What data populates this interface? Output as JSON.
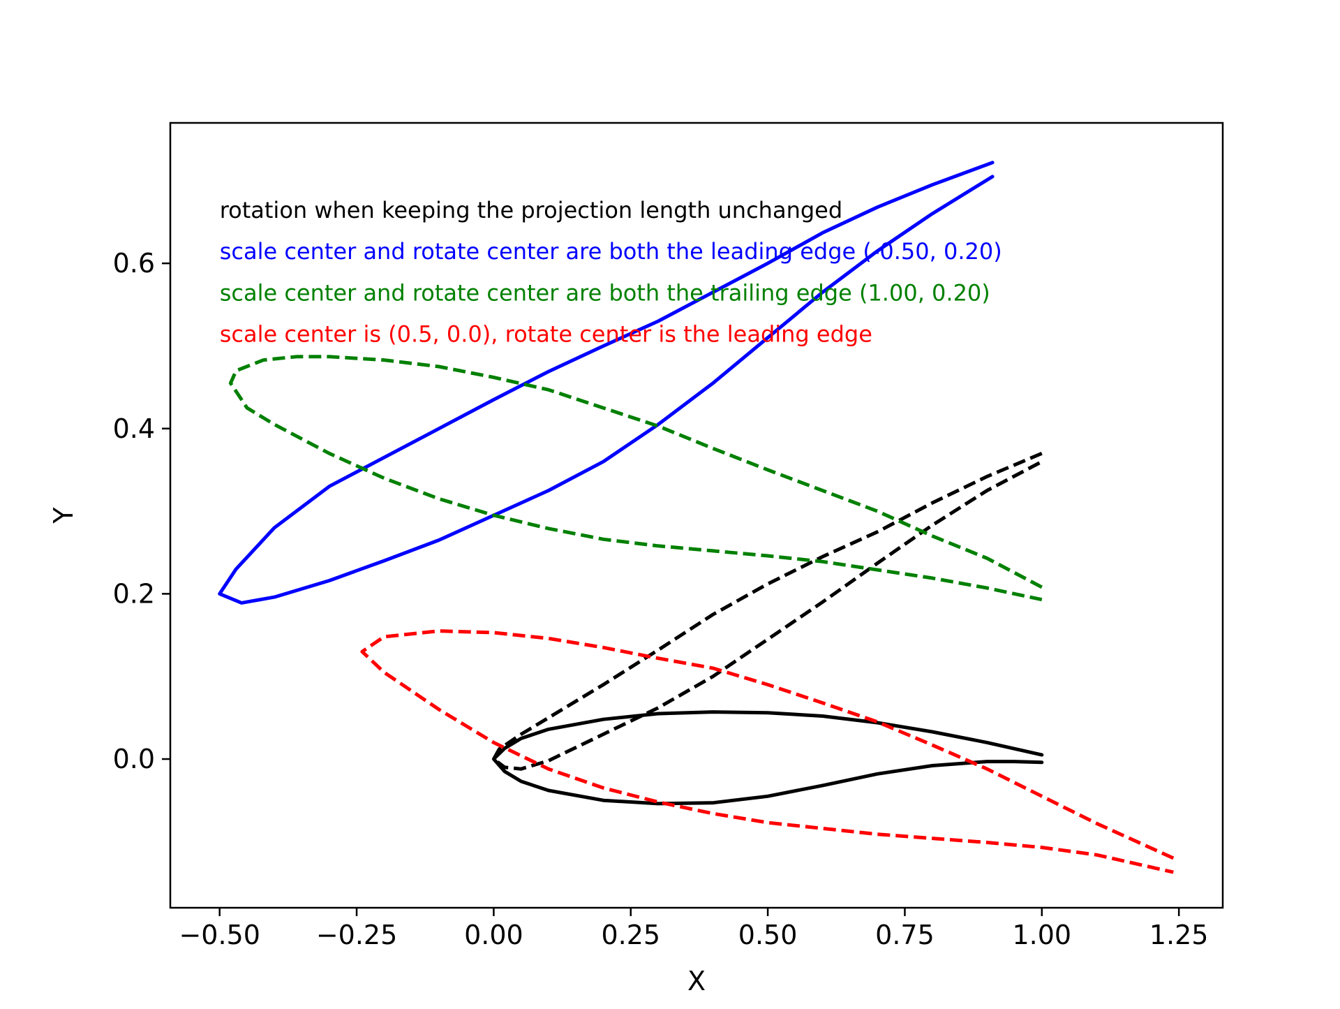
{
  "chart_data": {
    "type": "line",
    "xlabel": "X",
    "ylabel": "Y",
    "xlim": [
      -0.59,
      1.33
    ],
    "ylim": [
      -0.18,
      0.77
    ],
    "x_ticks": [
      {
        "value": -0.5,
        "label": "−0.50"
      },
      {
        "value": -0.25,
        "label": "−0.25"
      },
      {
        "value": 0.0,
        "label": "0.00"
      },
      {
        "value": 0.25,
        "label": "0.25"
      },
      {
        "value": 0.5,
        "label": "0.50"
      },
      {
        "value": 0.75,
        "label": "0.75"
      },
      {
        "value": 1.0,
        "label": "1.00"
      },
      {
        "value": 1.25,
        "label": "1.25"
      }
    ],
    "y_ticks": [
      {
        "value": 0.0,
        "label": "0.0"
      },
      {
        "value": 0.2,
        "label": "0.2"
      },
      {
        "value": 0.4,
        "label": "0.4"
      },
      {
        "value": 0.6,
        "label": "0.6"
      }
    ],
    "grid": false,
    "annotations": [
      {
        "text": "rotation when keeping the projection length unchanged",
        "x": -0.5,
        "y": 0.655,
        "color": "#000000"
      },
      {
        "text": "scale center and rotate center are both the leading edge (-0.50, 0.20)",
        "x": -0.5,
        "y": 0.605,
        "color": "#0000ff"
      },
      {
        "text": "scale center and rotate center are both the trailing edge (1.00, 0.20)",
        "x": -0.5,
        "y": 0.555,
        "color": "#008000"
      },
      {
        "text": "scale center is (0.5, 0.0), rotate center is the leading edge",
        "x": -0.5,
        "y": 0.505,
        "color": "#ff0000"
      }
    ],
    "series": [
      {
        "color": "#000000",
        "dash": "solid",
        "x": [
          1.0,
          0.9,
          0.8,
          0.7,
          0.6,
          0.5,
          0.4,
          0.3,
          0.2,
          0.1,
          0.05,
          0.02,
          0.0,
          0.02,
          0.05,
          0.1,
          0.2,
          0.3,
          0.4,
          0.5,
          0.6,
          0.7,
          0.8,
          0.9,
          0.95,
          1.0
        ],
        "y": [
          0.005,
          0.02,
          0.033,
          0.044,
          0.052,
          0.056,
          0.057,
          0.055,
          0.048,
          0.036,
          0.025,
          0.013,
          0.0,
          -0.015,
          -0.027,
          -0.038,
          -0.05,
          -0.054,
          -0.053,
          -0.045,
          -0.032,
          -0.018,
          -0.008,
          -0.003,
          -0.003,
          -0.004
        ]
      },
      {
        "color": "#000000",
        "dash": "dashed",
        "x": [
          1.0,
          0.9,
          0.8,
          0.7,
          0.6,
          0.5,
          0.4,
          0.3,
          0.2,
          0.1,
          0.05,
          0.01,
          0.0,
          0.02,
          0.05,
          0.1,
          0.2,
          0.3,
          0.4,
          0.5,
          0.6,
          0.7,
          0.8,
          0.9,
          1.0
        ],
        "y": [
          0.37,
          0.342,
          0.31,
          0.275,
          0.245,
          0.212,
          0.175,
          0.132,
          0.09,
          0.05,
          0.03,
          0.012,
          0.0,
          -0.01,
          -0.012,
          -0.002,
          0.03,
          0.062,
          0.1,
          0.145,
          0.19,
          0.237,
          0.283,
          0.325,
          0.36
        ]
      },
      {
        "color": "#0000ff",
        "dash": "solid",
        "x": [
          0.91,
          0.8,
          0.7,
          0.6,
          0.5,
          0.4,
          0.3,
          0.2,
          0.1,
          0.0,
          -0.1,
          -0.2,
          -0.3,
          -0.4,
          -0.47,
          -0.5,
          -0.46,
          -0.4,
          -0.3,
          -0.2,
          -0.1,
          0.0,
          0.1,
          0.2,
          0.3,
          0.4,
          0.5,
          0.6,
          0.7,
          0.8,
          0.91
        ],
        "y": [
          0.722,
          0.695,
          0.668,
          0.637,
          0.6,
          0.565,
          0.53,
          0.5,
          0.469,
          0.435,
          0.4,
          0.365,
          0.33,
          0.28,
          0.23,
          0.2,
          0.189,
          0.196,
          0.216,
          0.24,
          0.265,
          0.295,
          0.325,
          0.36,
          0.405,
          0.455,
          0.51,
          0.565,
          0.615,
          0.66,
          0.705
        ]
      },
      {
        "color": "#008000",
        "dash": "dashed",
        "x": [
          1.0,
          0.9,
          0.8,
          0.7,
          0.6,
          0.5,
          0.4,
          0.3,
          0.2,
          0.1,
          0.0,
          -0.1,
          -0.2,
          -0.3,
          -0.36,
          -0.42,
          -0.47,
          -0.48,
          -0.45,
          -0.4,
          -0.3,
          -0.2,
          -0.1,
          0.0,
          0.1,
          0.2,
          0.3,
          0.4,
          0.5,
          0.6,
          0.7,
          0.8,
          0.9,
          1.0
        ],
        "y": [
          0.208,
          0.243,
          0.27,
          0.3,
          0.325,
          0.35,
          0.376,
          0.403,
          0.425,
          0.447,
          0.462,
          0.475,
          0.483,
          0.487,
          0.487,
          0.483,
          0.47,
          0.455,
          0.425,
          0.405,
          0.37,
          0.34,
          0.315,
          0.295,
          0.279,
          0.266,
          0.258,
          0.252,
          0.246,
          0.239,
          0.229,
          0.219,
          0.207,
          0.193
        ]
      },
      {
        "color": "#ff0000",
        "dash": "dashed",
        "x": [
          1.24,
          1.1,
          1.0,
          0.9,
          0.8,
          0.7,
          0.6,
          0.5,
          0.4,
          0.3,
          0.2,
          0.1,
          0.0,
          -0.1,
          -0.2,
          -0.24,
          -0.2,
          -0.1,
          0.0,
          0.1,
          0.2,
          0.3,
          0.4,
          0.5,
          0.6,
          0.7,
          0.8,
          0.9,
          1.0,
          1.1,
          1.24
        ],
        "y": [
          -0.12,
          -0.078,
          -0.045,
          -0.012,
          0.017,
          0.045,
          0.068,
          0.09,
          0.11,
          0.122,
          0.135,
          0.146,
          0.153,
          0.155,
          0.148,
          0.13,
          0.105,
          0.06,
          0.02,
          -0.012,
          -0.035,
          -0.052,
          -0.066,
          -0.077,
          -0.084,
          -0.091,
          -0.096,
          -0.101,
          -0.107,
          -0.116,
          -0.137
        ]
      }
    ]
  }
}
